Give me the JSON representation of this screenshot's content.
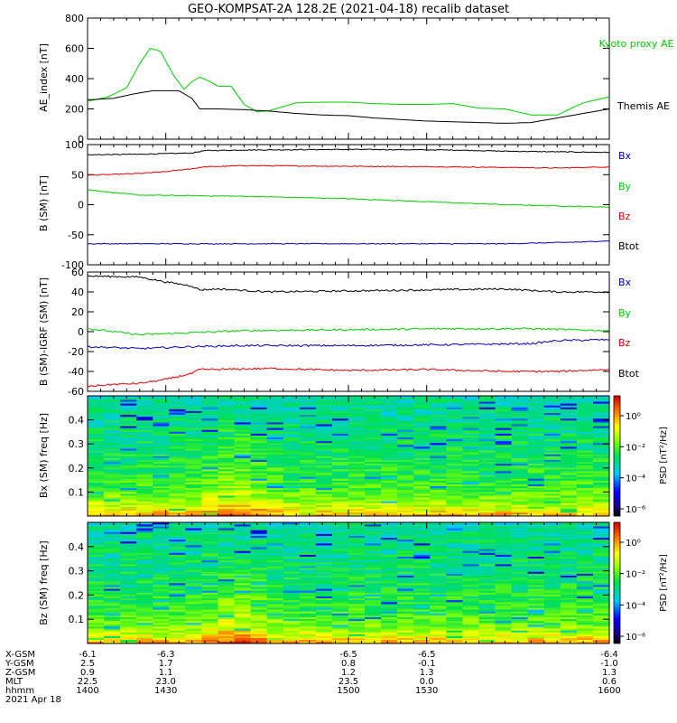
{
  "title": "GEO-KOMPSAT-2A 128.2E (2021-04-18) recalib dataset",
  "colors": {
    "green": "#00cc00",
    "black": "#000000",
    "red": "#dd0000",
    "blue": "#0000bb",
    "axis": "#000000"
  },
  "chart_data": [
    {
      "type": "line",
      "ylabel": "AE_index [nT]",
      "ylim": [
        0,
        800
      ],
      "yticks": [
        0,
        200,
        400,
        600,
        800
      ],
      "xlim": [
        1400,
        1600
      ],
      "legend": [
        "Kyoto proxy AE",
        "Themis AE"
      ],
      "series": [
        {
          "name": "Kyoto proxy AE",
          "color": "#00cc00",
          "x": [
            1400,
            1408,
            1415,
            1420,
            1424,
            1428,
            1433,
            1437,
            1440,
            1443,
            1447,
            1450,
            1455,
            1460,
            1465,
            1470,
            1480,
            1490,
            1500,
            1510,
            1520,
            1530,
            1540,
            1550,
            1560,
            1570,
            1580,
            1590,
            1600
          ],
          "y": [
            250,
            280,
            340,
            500,
            600,
            580,
            420,
            330,
            380,
            410,
            380,
            350,
            350,
            230,
            180,
            190,
            240,
            245,
            245,
            235,
            230,
            230,
            235,
            205,
            200,
            160,
            160,
            240,
            280
          ]
        },
        {
          "name": "Themis AE",
          "color": "#000000",
          "x": [
            1400,
            1410,
            1418,
            1425,
            1435,
            1440,
            1443,
            1450,
            1460,
            1470,
            1480,
            1490,
            1500,
            1510,
            1520,
            1530,
            1540,
            1550,
            1560,
            1570,
            1580,
            1590,
            1600
          ],
          "y": [
            260,
            270,
            300,
            320,
            320,
            270,
            200,
            200,
            195,
            185,
            170,
            160,
            155,
            140,
            130,
            120,
            115,
            110,
            105,
            110,
            140,
            170,
            200
          ]
        }
      ]
    },
    {
      "type": "line",
      "ylabel": "B (SM) [nT]",
      "ylim": [
        -100,
        100
      ],
      "yticks": [
        -100,
        -50,
        0,
        50,
        100
      ],
      "xlim": [
        1400,
        1600
      ],
      "legend": [
        "Bx",
        "By",
        "Bz",
        "Btot"
      ],
      "series": [
        {
          "name": "Btot",
          "color": "#000000",
          "x": [
            1400,
            1420,
            1440,
            1445,
            1460,
            1500,
            1540,
            1560,
            1580,
            1600
          ],
          "y": [
            83,
            84,
            86,
            90,
            91,
            92,
            91,
            89,
            88,
            87
          ]
        },
        {
          "name": "Bz",
          "color": "#dd0000",
          "x": [
            1400,
            1420,
            1430,
            1440,
            1445,
            1460,
            1500,
            1540,
            1560,
            1580,
            1600
          ],
          "y": [
            49,
            52,
            55,
            60,
            63,
            65,
            64,
            63,
            62,
            61,
            63
          ]
        },
        {
          "name": "By",
          "color": "#00cc00",
          "x": [
            1400,
            1410,
            1420,
            1440,
            1460,
            1500,
            1530,
            1560,
            1580,
            1600
          ],
          "y": [
            25,
            20,
            16,
            15,
            14,
            10,
            5,
            0,
            -2,
            -4
          ]
        },
        {
          "name": "Bx",
          "color": "#0000bb",
          "x": [
            1400,
            1440,
            1500,
            1560,
            1590,
            1600
          ],
          "y": [
            -65,
            -65,
            -65,
            -65,
            -62,
            -60
          ]
        }
      ]
    },
    {
      "type": "line",
      "ylabel": "B (SM)-IGRF (SM) [nT]",
      "ylim": [
        -60,
        60
      ],
      "yticks": [
        -60,
        -40,
        -20,
        0,
        20,
        40,
        60
      ],
      "xlim": [
        1400,
        1600
      ],
      "legend": [
        "Bx",
        "By",
        "Bz",
        "Btot"
      ],
      "series": [
        {
          "name": "Btot",
          "color": "#000000",
          "x": [
            1400,
            1420,
            1430,
            1440,
            1443,
            1450,
            1470,
            1500,
            1530,
            1560,
            1580,
            1600
          ],
          "y": [
            56,
            55,
            50,
            46,
            42,
            43,
            40,
            41,
            42,
            43,
            40,
            40
          ]
        },
        {
          "name": "By",
          "color": "#00cc00",
          "x": [
            1400,
            1410,
            1420,
            1440,
            1460,
            1500,
            1540,
            1570,
            1600
          ],
          "y": [
            3,
            0,
            -3,
            -1,
            1,
            2,
            3,
            3,
            1
          ]
        },
        {
          "name": "Bx",
          "color": "#0000bb",
          "x": [
            1400,
            1420,
            1440,
            1460,
            1500,
            1540,
            1570,
            1580,
            1600
          ],
          "y": [
            -15,
            -17,
            -15,
            -14,
            -14,
            -13,
            -12,
            -9,
            -8
          ]
        },
        {
          "name": "Bz",
          "color": "#dd0000",
          "x": [
            1400,
            1410,
            1420,
            1430,
            1440,
            1443,
            1450,
            1470,
            1500,
            1530,
            1560,
            1580,
            1600
          ],
          "y": [
            -55,
            -53,
            -52,
            -48,
            -42,
            -38,
            -38,
            -37,
            -39,
            -38,
            -40,
            -40,
            -38
          ]
        }
      ]
    },
    {
      "type": "heatmap",
      "ylabel": "Bx (SM) freq [Hz]",
      "ylim": [
        0,
        0.5
      ],
      "yticks": [
        0.1,
        0.2,
        0.3,
        0.4
      ],
      "xlim": [
        1400,
        1600
      ],
      "colorbar_label": "PSD [nT²/Hz]",
      "colorbar_ticks": [
        "10⁰",
        "10⁻²",
        "10⁻⁴",
        "10⁻⁶"
      ]
    },
    {
      "type": "heatmap",
      "ylabel": "Bz (SM) freq [Hz]",
      "ylim": [
        0,
        0.5
      ],
      "yticks": [
        0.1,
        0.2,
        0.3,
        0.4
      ],
      "xlim": [
        1400,
        1600
      ],
      "colorbar_label": "PSD [nT²/Hz]",
      "colorbar_ticks": [
        "10⁰",
        "10⁻²",
        "10⁻⁴",
        "10⁻⁶"
      ]
    }
  ],
  "ephemeris": {
    "row_labels": [
      "X-GSM",
      "Y-GSM",
      "Z-GSM",
      "MLT",
      "hhmm",
      "2021 Apr 18"
    ],
    "columns": [
      [
        "-6.1",
        "2.5",
        "0.9",
        "22.5",
        "1400"
      ],
      [
        "-6.3",
        "1.7",
        "1.1",
        "23.0",
        "1430"
      ],
      [
        "-6.5",
        "0.8",
        "1.2",
        "23.5",
        "1500"
      ],
      [
        "-6.5",
        "-0.1",
        "1.3",
        "0.0",
        "1530"
      ],
      [
        "-6.4",
        "-1.0",
        "1.3",
        "0.6",
        "1600"
      ]
    ]
  }
}
